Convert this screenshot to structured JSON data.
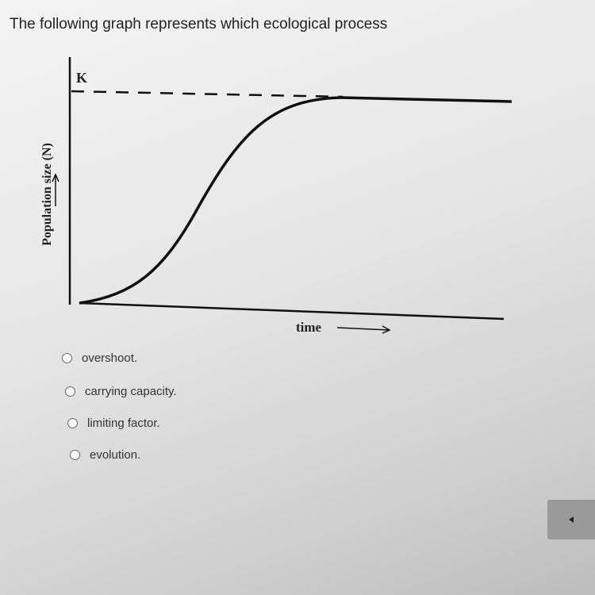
{
  "question": "The following graph represents which ecological process",
  "graph": {
    "k_label": "K",
    "y_label": "Population size (N)",
    "x_label": "time"
  },
  "options": [
    "overshoot.",
    "carrying capacity.",
    "limiting factor.",
    "evolution."
  ]
}
